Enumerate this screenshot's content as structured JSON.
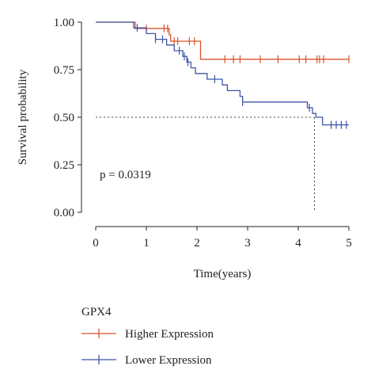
{
  "chart_data": {
    "type": "line",
    "title": "",
    "xlabel": "Time(years)",
    "ylabel": "Survival probability",
    "xlim": [
      0,
      5
    ],
    "ylim": [
      0,
      1
    ],
    "x_ticks": [
      0,
      1,
      2,
      3,
      4,
      5
    ],
    "x_tick_labels": [
      "0",
      "1",
      "2",
      "3",
      "4",
      "5"
    ],
    "y_ticks": [
      0,
      0.25,
      0.5,
      0.75,
      1
    ],
    "y_tick_labels": [
      "0.00",
      "0.25",
      "0.50",
      "0.75",
      "1.00"
    ],
    "grid": false,
    "annotation": "p = 0.0319",
    "median_reference": {
      "y": 0.5,
      "x": 4.32
    },
    "legend": {
      "title": "GPX4",
      "placement": "bottom",
      "entries": [
        "Higher Expression",
        "Lower Expression"
      ]
    },
    "series": [
      {
        "name": "Higher Expression",
        "color": "#d9542b",
        "steps": [
          [
            0,
            1.0
          ],
          [
            0.78,
            0.967
          ],
          [
            1.45,
            0.933
          ],
          [
            1.48,
            0.9
          ],
          [
            2.07,
            0.805
          ],
          [
            5.0,
            0.805
          ]
        ],
        "censor_x": [
          1.0,
          1.35,
          1.42,
          1.55,
          1.62,
          1.85,
          1.95,
          2.55,
          2.72,
          2.85,
          3.25,
          3.6,
          4.02,
          4.15,
          4.37,
          4.42,
          4.5,
          5.0
        ]
      },
      {
        "name": "Lower Expression",
        "color": "#3f56a6",
        "steps": [
          [
            0,
            1.0
          ],
          [
            0.75,
            0.97
          ],
          [
            1.0,
            0.94
          ],
          [
            1.18,
            0.91
          ],
          [
            1.4,
            0.88
          ],
          [
            1.55,
            0.85
          ],
          [
            1.72,
            0.82
          ],
          [
            1.8,
            0.79
          ],
          [
            1.88,
            0.76
          ],
          [
            1.97,
            0.73
          ],
          [
            2.2,
            0.7
          ],
          [
            2.5,
            0.67
          ],
          [
            2.6,
            0.64
          ],
          [
            2.85,
            0.61
          ],
          [
            2.9,
            0.58
          ],
          [
            4.18,
            0.55
          ],
          [
            4.28,
            0.52
          ],
          [
            4.35,
            0.5
          ],
          [
            4.48,
            0.46
          ],
          [
            5.0,
            0.46
          ]
        ],
        "censor_x": [
          0.82,
          1.18,
          1.32,
          1.65,
          1.75,
          1.82,
          2.35,
          2.9,
          4.22,
          4.65,
          4.75,
          4.85,
          4.95
        ]
      }
    ]
  }
}
